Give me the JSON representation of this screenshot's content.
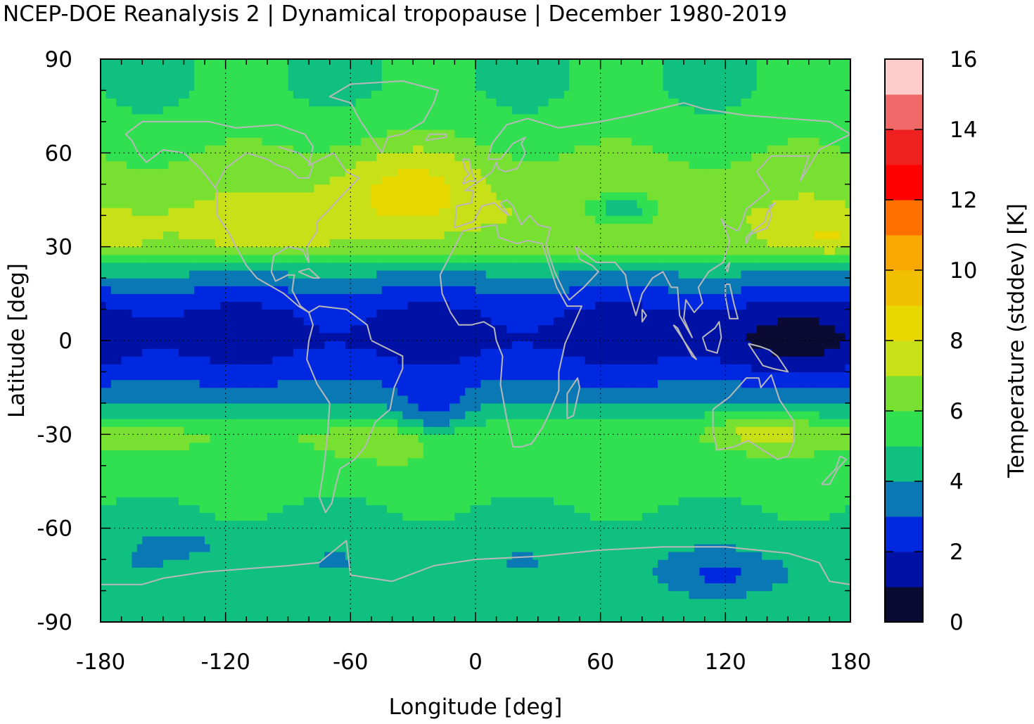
{
  "chart_data": {
    "type": "heatmap",
    "title": "NCEP-DOE Reanalysis 2 | Dynamical tropopause | December 1980-2019",
    "xlabel": "Longitude [deg]",
    "ylabel": "Latitude [deg]",
    "colorbar_label": "Temperature (stddev) [K]",
    "xlim": [
      -180,
      180
    ],
    "ylim": [
      -90,
      90
    ],
    "clim": [
      0,
      16
    ],
    "grid": true,
    "x_ticks": [
      "-180",
      "-120",
      "-60",
      "0",
      "60",
      "120",
      "180"
    ],
    "y_ticks": [
      "90",
      "60",
      "30",
      "0",
      "-30",
      "-60",
      "-90"
    ],
    "colorbar_ticks": [
      "0",
      "2",
      "4",
      "6",
      "8",
      "10",
      "12",
      "14",
      "16"
    ],
    "colorbar_colors": [
      "#0a0a33",
      "#0012a6",
      "#0028e0",
      "#0a78b4",
      "#10c080",
      "#30e050",
      "#78e030",
      "#c8e018",
      "#e8d800",
      "#f0c000",
      "#f8a800",
      "#ff7000",
      "#ff0000",
      "#f02020",
      "#f06868",
      "#ffcccc"
    ],
    "zonal_mean_stddev": [
      {
        "lat": -90,
        "value": 4.6
      },
      {
        "lat": -80,
        "value": 4.4
      },
      {
        "lat": -70,
        "value": 4.2
      },
      {
        "lat": -60,
        "value": 4.6
      },
      {
        "lat": -50,
        "value": 5.2
      },
      {
        "lat": -40,
        "value": 5.7
      },
      {
        "lat": -30,
        "value": 5.9
      },
      {
        "lat": -20,
        "value": 4.0
      },
      {
        "lat": -10,
        "value": 2.5
      },
      {
        "lat": 0,
        "value": 1.6
      },
      {
        "lat": 10,
        "value": 2.0
      },
      {
        "lat": 20,
        "value": 3.6
      },
      {
        "lat": 30,
        "value": 6.4
      },
      {
        "lat": 40,
        "value": 7.0
      },
      {
        "lat": 50,
        "value": 6.6
      },
      {
        "lat": 60,
        "value": 6.0
      },
      {
        "lat": 70,
        "value": 5.3
      },
      {
        "lat": 80,
        "value": 5.0
      },
      {
        "lat": 90,
        "value": 5.0
      }
    ]
  }
}
